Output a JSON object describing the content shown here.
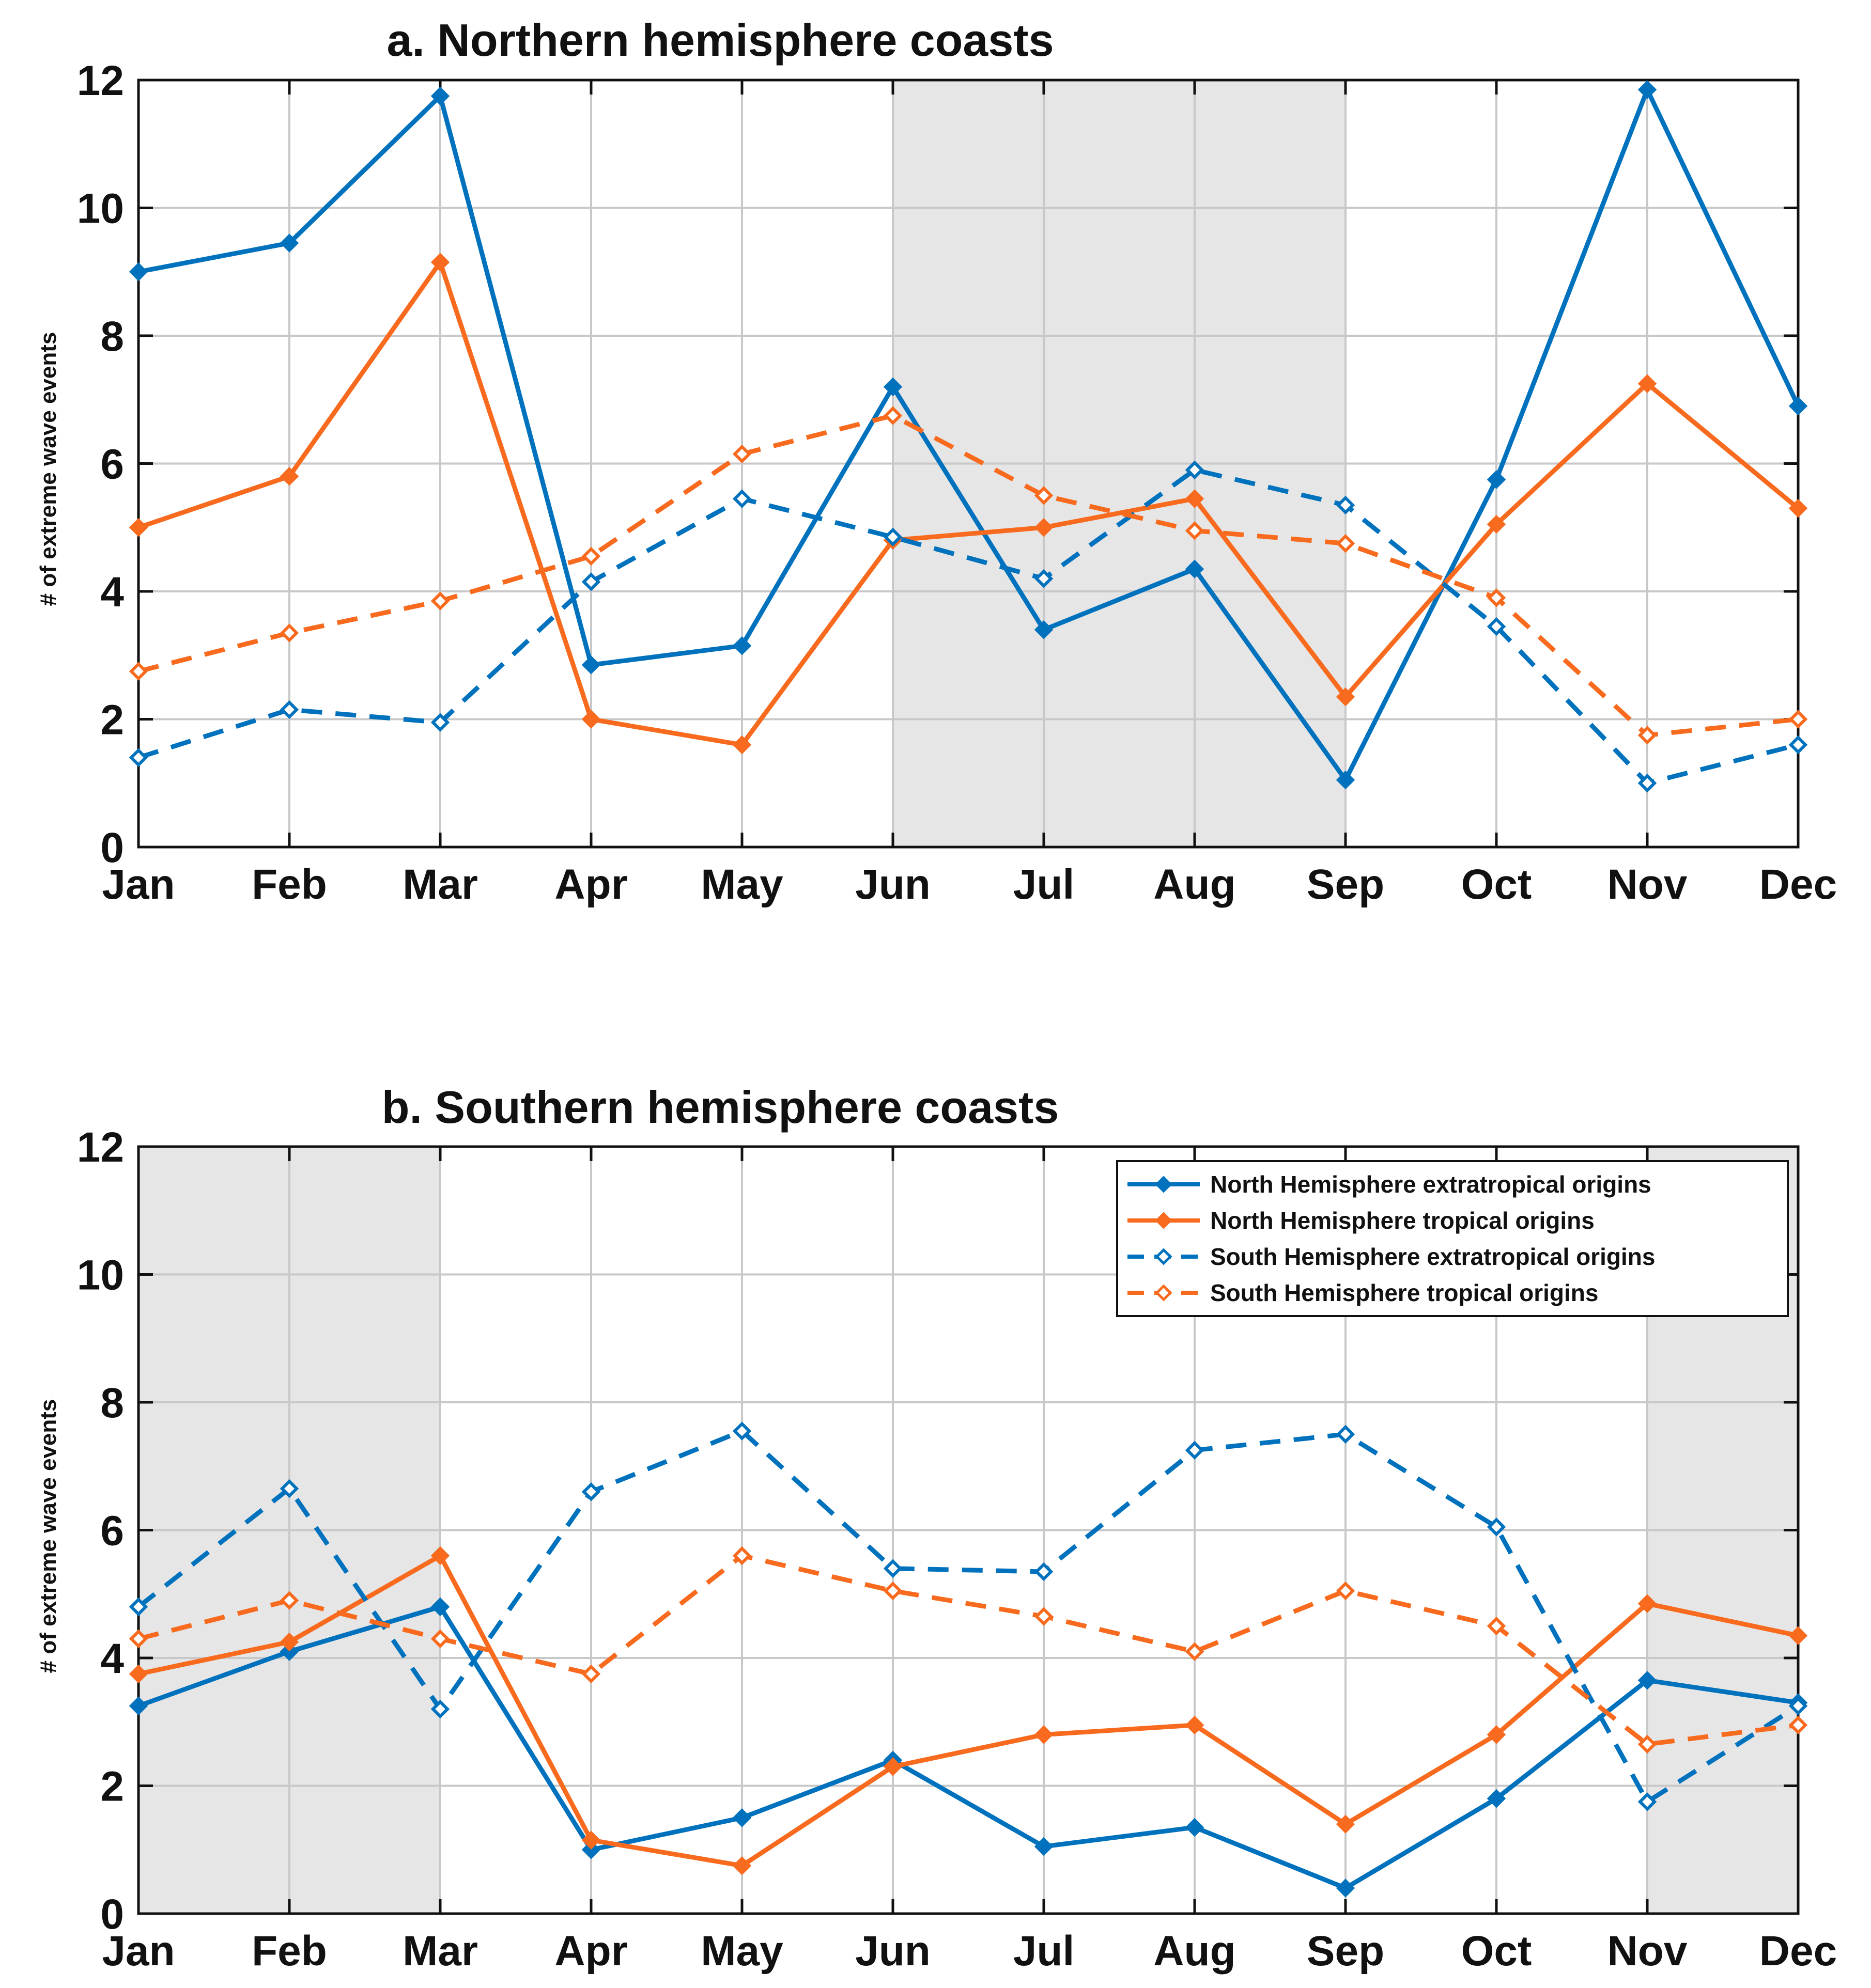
{
  "colors": {
    "blue": "#0072BD",
    "orange": "#F86A1E",
    "shade": "#E6E6E6",
    "grid": "#C8C8C8"
  },
  "legend": {
    "placement": "top-right",
    "entries": [
      {
        "label": "North Hemisphere extratropical origins",
        "color": "#0072BD",
        "dash": false,
        "filled": true
      },
      {
        "label": "North Hemisphere tropical origins",
        "color": "#F86A1E",
        "dash": false,
        "filled": true
      },
      {
        "label": "South Hemisphere extratropical origins",
        "color": "#0072BD",
        "dash": true,
        "filled": false
      },
      {
        "label": "South Hemisphere tropical origins",
        "color": "#F86A1E",
        "dash": true,
        "filled": false
      }
    ]
  },
  "chart_data": [
    {
      "type": "line",
      "title": "a. Northern hemisphere coasts",
      "xlabel": "",
      "ylabel": "# of extreme wave events",
      "ylim": [
        0,
        12
      ],
      "yticks": [
        "0",
        "2",
        "4",
        "6",
        "8",
        "10",
        "12"
      ],
      "categories": [
        "Jan",
        "Feb",
        "Mar",
        "Apr",
        "May",
        "Jun",
        "Jul",
        "Aug",
        "Sep",
        "Oct",
        "Nov",
        "Dec"
      ],
      "shaded_months": [
        "Jun",
        "Sep"
      ],
      "grid": true,
      "series": [
        {
          "name": "North Hemisphere extratropical origins",
          "values": [
            9.0,
            9.45,
            11.75,
            2.85,
            3.15,
            7.2,
            3.4,
            4.35,
            1.05,
            5.75,
            11.85,
            6.9
          ]
        },
        {
          "name": "North Hemisphere tropical origins",
          "values": [
            5.0,
            5.8,
            9.15,
            2.0,
            1.6,
            4.8,
            5.0,
            5.45,
            2.35,
            5.05,
            7.25,
            5.3
          ]
        },
        {
          "name": "South Hemisphere extratropical origins",
          "values": [
            1.4,
            2.15,
            1.95,
            4.15,
            5.45,
            4.85,
            4.2,
            5.9,
            5.35,
            3.45,
            1.0,
            1.6
          ]
        },
        {
          "name": "South Hemisphere tropical origins",
          "values": [
            2.75,
            3.35,
            3.85,
            4.55,
            6.15,
            6.75,
            5.5,
            4.95,
            4.75,
            3.9,
            1.75,
            2.0
          ]
        }
      ]
    },
    {
      "type": "line",
      "title": "b. Southern hemisphere coasts",
      "xlabel": "",
      "ylabel": "# of extreme wave events",
      "ylim": [
        0,
        12
      ],
      "yticks": [
        "0",
        "2",
        "4",
        "6",
        "8",
        "10",
        "12"
      ],
      "categories": [
        "Jan",
        "Feb",
        "Mar",
        "Apr",
        "May",
        "Jun",
        "Jul",
        "Aug",
        "Sep",
        "Oct",
        "Nov",
        "Dec"
      ],
      "shaded_months": [
        "Jan",
        "Mar",
        "Nov",
        "Dec"
      ],
      "grid": true,
      "series": [
        {
          "name": "North Hemisphere extratropical origins",
          "values": [
            3.25,
            4.1,
            4.8,
            1.0,
            1.5,
            2.4,
            1.05,
            1.35,
            0.4,
            1.8,
            3.65,
            3.3
          ]
        },
        {
          "name": "North Hemisphere tropical origins",
          "values": [
            3.75,
            4.25,
            5.6,
            1.15,
            0.75,
            2.3,
            2.8,
            2.95,
            1.4,
            2.8,
            4.85,
            4.35
          ]
        },
        {
          "name": "South Hemisphere extratropical origins",
          "values": [
            4.8,
            6.65,
            3.2,
            6.6,
            7.55,
            5.4,
            5.35,
            7.25,
            7.5,
            6.05,
            1.75,
            3.25
          ]
        },
        {
          "name": "South Hemisphere tropical origins",
          "values": [
            4.3,
            4.9,
            4.3,
            3.75,
            5.6,
            5.05,
            4.65,
            4.1,
            5.05,
            4.5,
            2.65,
            2.95
          ]
        }
      ]
    }
  ]
}
